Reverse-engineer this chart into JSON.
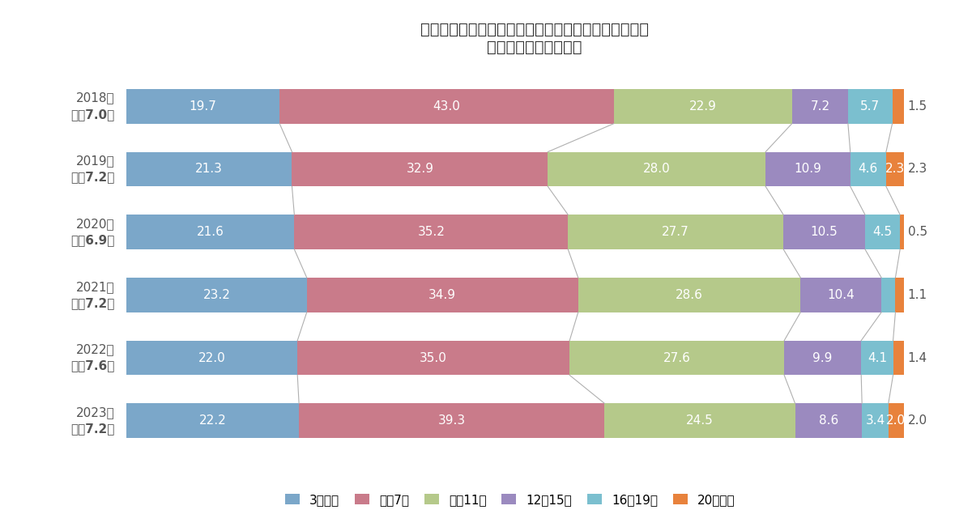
{
  "title_line1": "首都圏　新築マンションの徒歩時間別供給シェア推移",
  "title_line2": "（徒歩物件のみ集計）",
  "year_labels_line1": [
    "2023年",
    "2022年",
    "2021年",
    "2020年",
    "2019年",
    "2018年"
  ],
  "year_labels_line2": [
    "平均7.2分",
    "平均7.6分",
    "平均7.2分",
    "平均6.9分",
    "平均7.2分",
    "平均7.0分"
  ],
  "categories": [
    "3分以内",
    "４〜7分",
    "８〜11分",
    "12〜15分",
    "16〜19分",
    "20分以上"
  ],
  "colors": [
    "#7ba7c9",
    "#c97b8a",
    "#b5c98a",
    "#9b8abf",
    "#7bbfcf",
    "#e8823c"
  ],
  "data": [
    [
      22.2,
      39.3,
      24.5,
      8.6,
      3.4,
      2.0
    ],
    [
      22.0,
      35.0,
      27.6,
      9.9,
      4.1,
      1.4
    ],
    [
      23.2,
      34.9,
      28.6,
      10.4,
      1.8,
      1.1
    ],
    [
      21.6,
      35.2,
      27.7,
      10.5,
      4.5,
      0.5
    ],
    [
      21.3,
      32.9,
      28.0,
      10.9,
      4.6,
      2.3
    ],
    [
      19.7,
      43.0,
      22.9,
      7.2,
      5.7,
      1.5
    ]
  ],
  "background_color": "#ffffff",
  "bar_height": 0.55,
  "connector_color": "#b0b0b0",
  "title_fontsize": 14,
  "label_fontsize": 11,
  "tick_fontsize": 11,
  "legend_fontsize": 11,
  "outside_label_fontsize": 11,
  "text_color": "#555555"
}
